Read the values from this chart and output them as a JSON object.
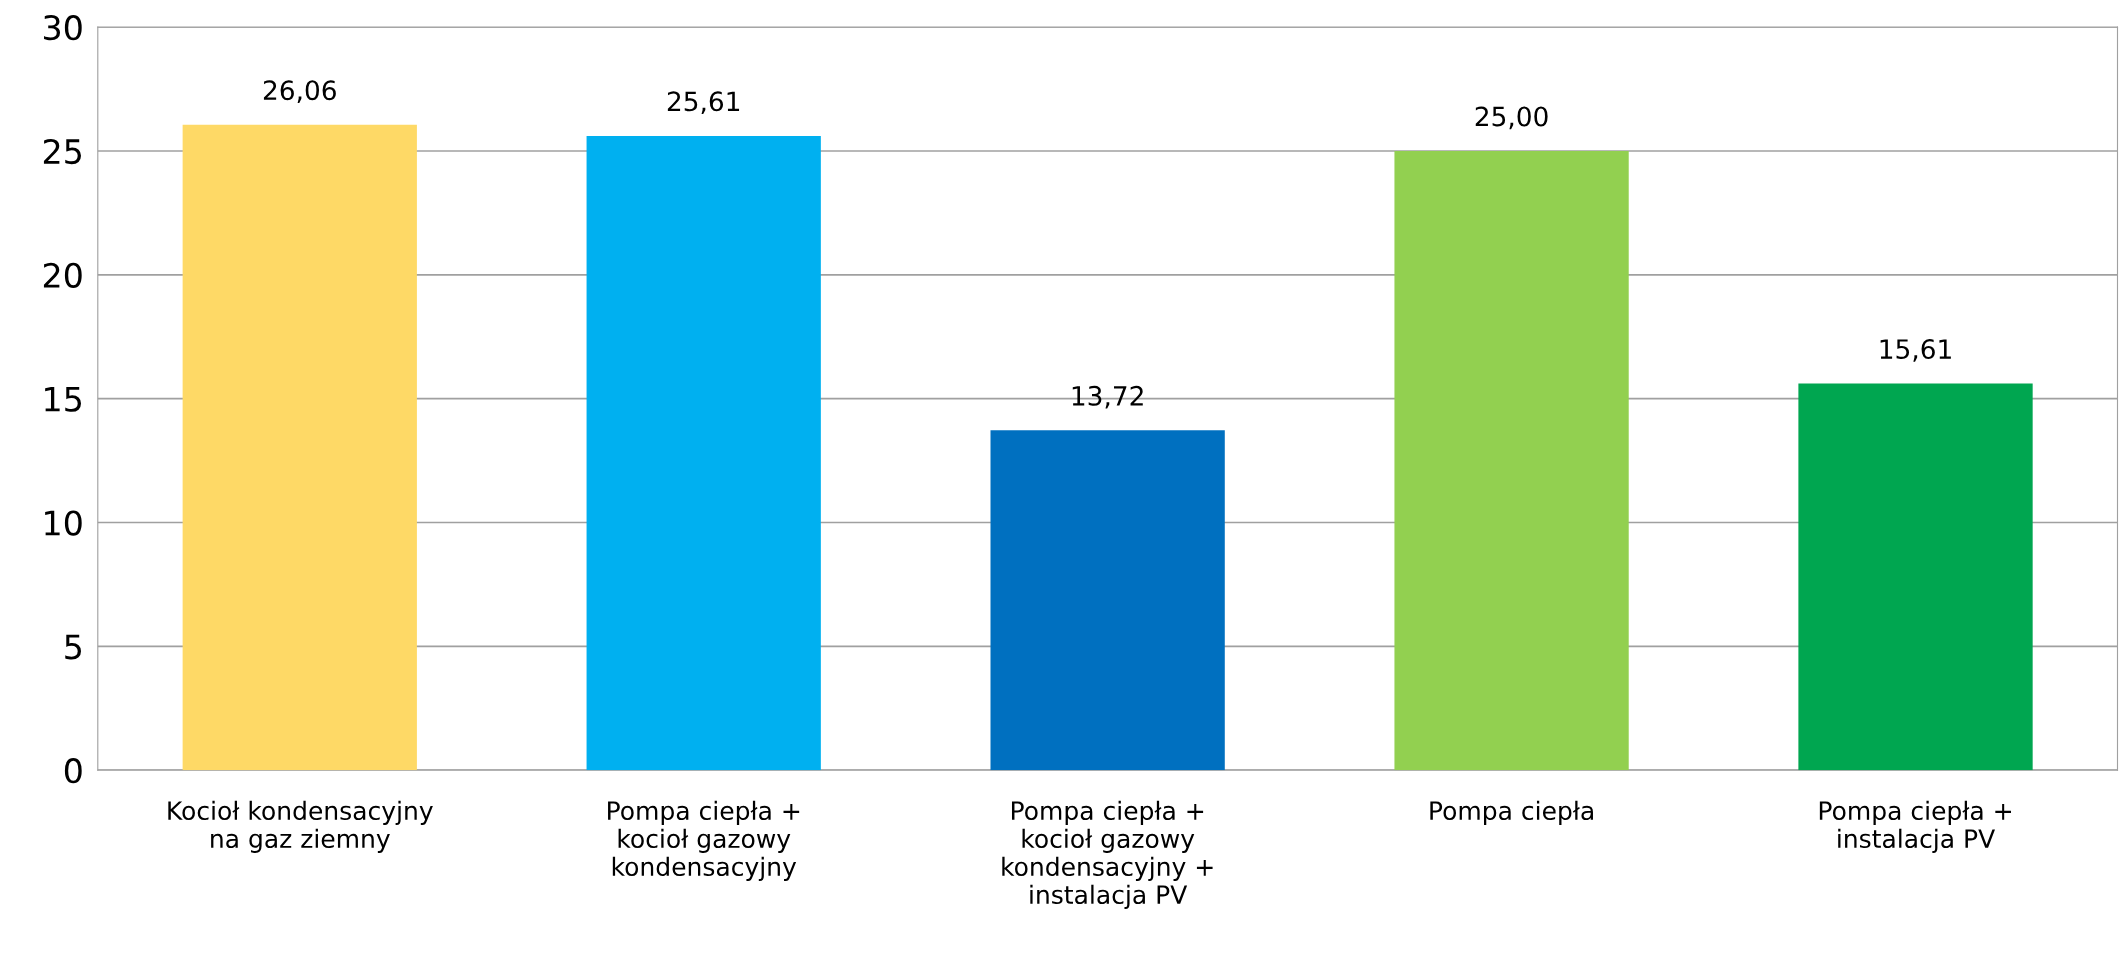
{
  "chart_data": {
    "type": "bar",
    "categories": [
      "Kocioł kondensacyjny\nna gaz ziemny",
      "Pompa ciepła +\nkocioł gazowy\nkondensacyjny",
      "Pompa ciepła +\nkocioł gazowy\nkondensacyjny +\ninstalacja PV",
      "Pompa ciepła",
      "Pompa ciepła +\ninstalacja PV"
    ],
    "values": [
      26.06,
      25.61,
      13.72,
      25.0,
      15.61
    ],
    "value_labels": [
      "26,06",
      "25,61",
      "13,72",
      "25,00",
      "15,61"
    ],
    "colors": [
      "#fed966",
      "#00b0f0",
      "#0070c0",
      "#92d050",
      "#00a650"
    ],
    "ylim": [
      0,
      30
    ],
    "yticks": [
      0,
      5,
      10,
      15,
      20,
      25,
      30
    ],
    "grid": "y"
  }
}
